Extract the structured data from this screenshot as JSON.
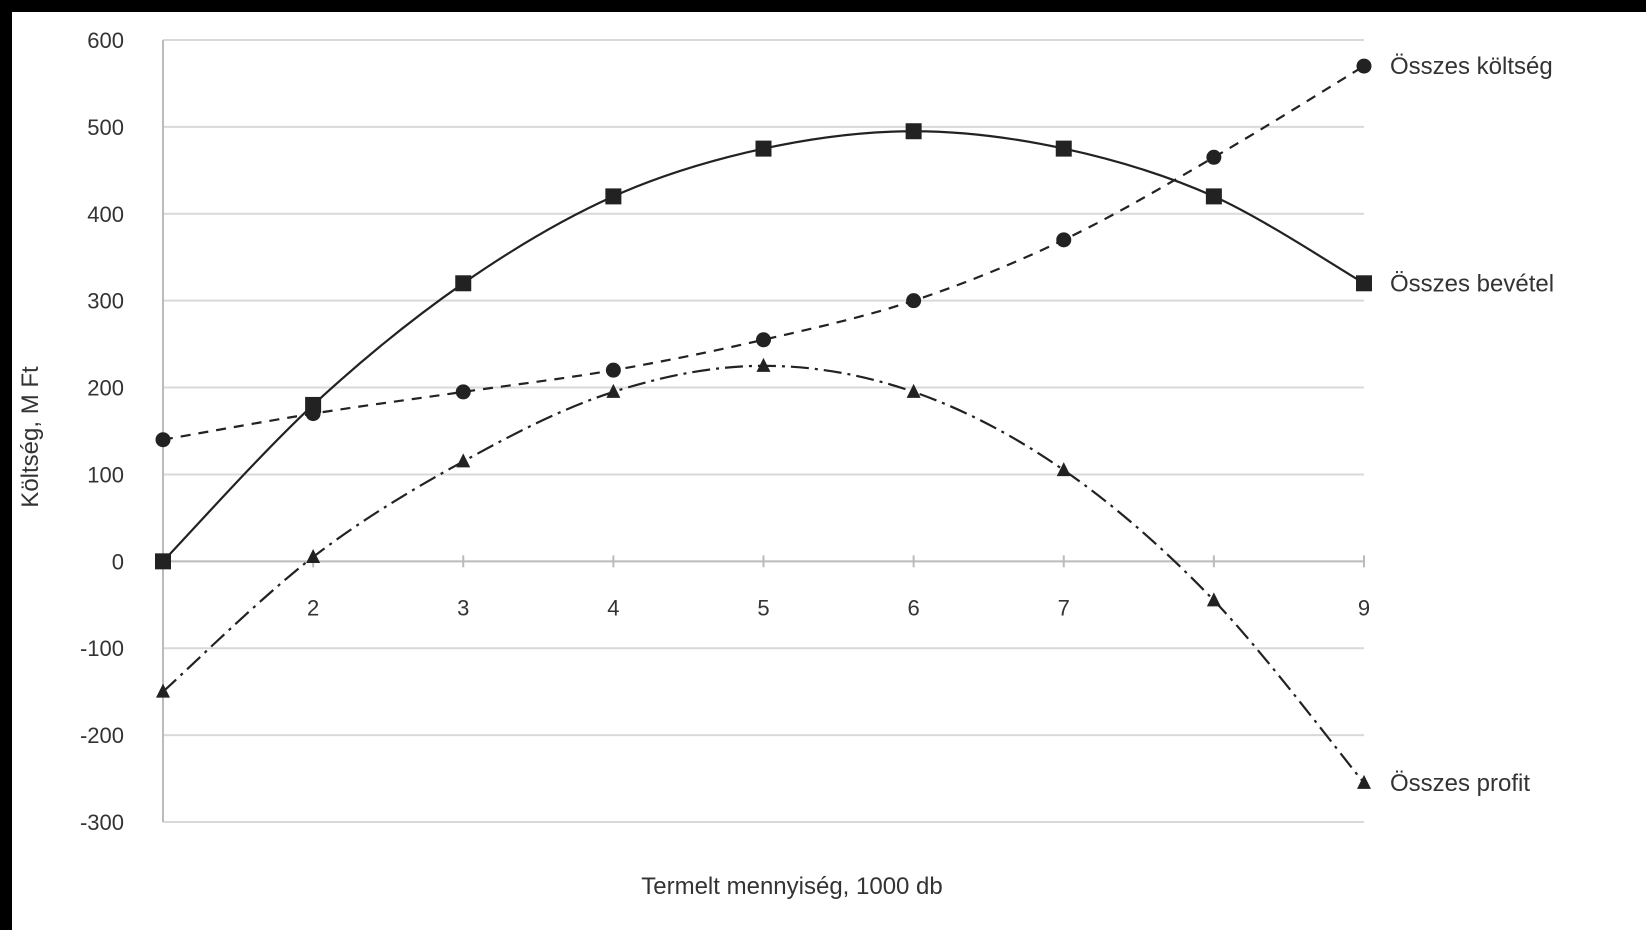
{
  "chart_data": {
    "type": "line",
    "title": "",
    "xlabel": "Termelt mennyiség, 1000 db",
    "ylabel": "Költség, M Ft",
    "xlim": [
      1,
      9
    ],
    "ylim": [
      -300,
      600
    ],
    "x_ticks": [
      "2",
      "3",
      "4",
      "5",
      "6",
      "7",
      "9"
    ],
    "y_ticks": [
      "600",
      "500",
      "400",
      "300",
      "200",
      "100",
      "0",
      "-100",
      "-200",
      "-300"
    ],
    "grid": true,
    "legend": "inline labels at right end of each series",
    "x": [
      1,
      2,
      3,
      4,
      5,
      6,
      7,
      8,
      9
    ],
    "series": [
      {
        "name": "Összes költség",
        "values": [
          140,
          170,
          195,
          220,
          255,
          300,
          370,
          465,
          570
        ],
        "line": "dashed",
        "marker": "circle",
        "smooth": true
      },
      {
        "name": "Összes bevétel",
        "values": [
          0,
          180,
          320,
          420,
          475,
          495,
          475,
          420,
          320
        ],
        "line": "solid",
        "marker": "square",
        "smooth": true
      },
      {
        "name": "Összes profit",
        "values": [
          -150,
          5,
          115,
          195,
          225,
          195,
          105,
          -45,
          -255
        ],
        "line": "dashdot",
        "marker": "triangle",
        "smooth": true
      }
    ],
    "colors": {
      "line": "#222222",
      "grid": "#d9d9d9",
      "axis": "#bbbbbb"
    }
  }
}
